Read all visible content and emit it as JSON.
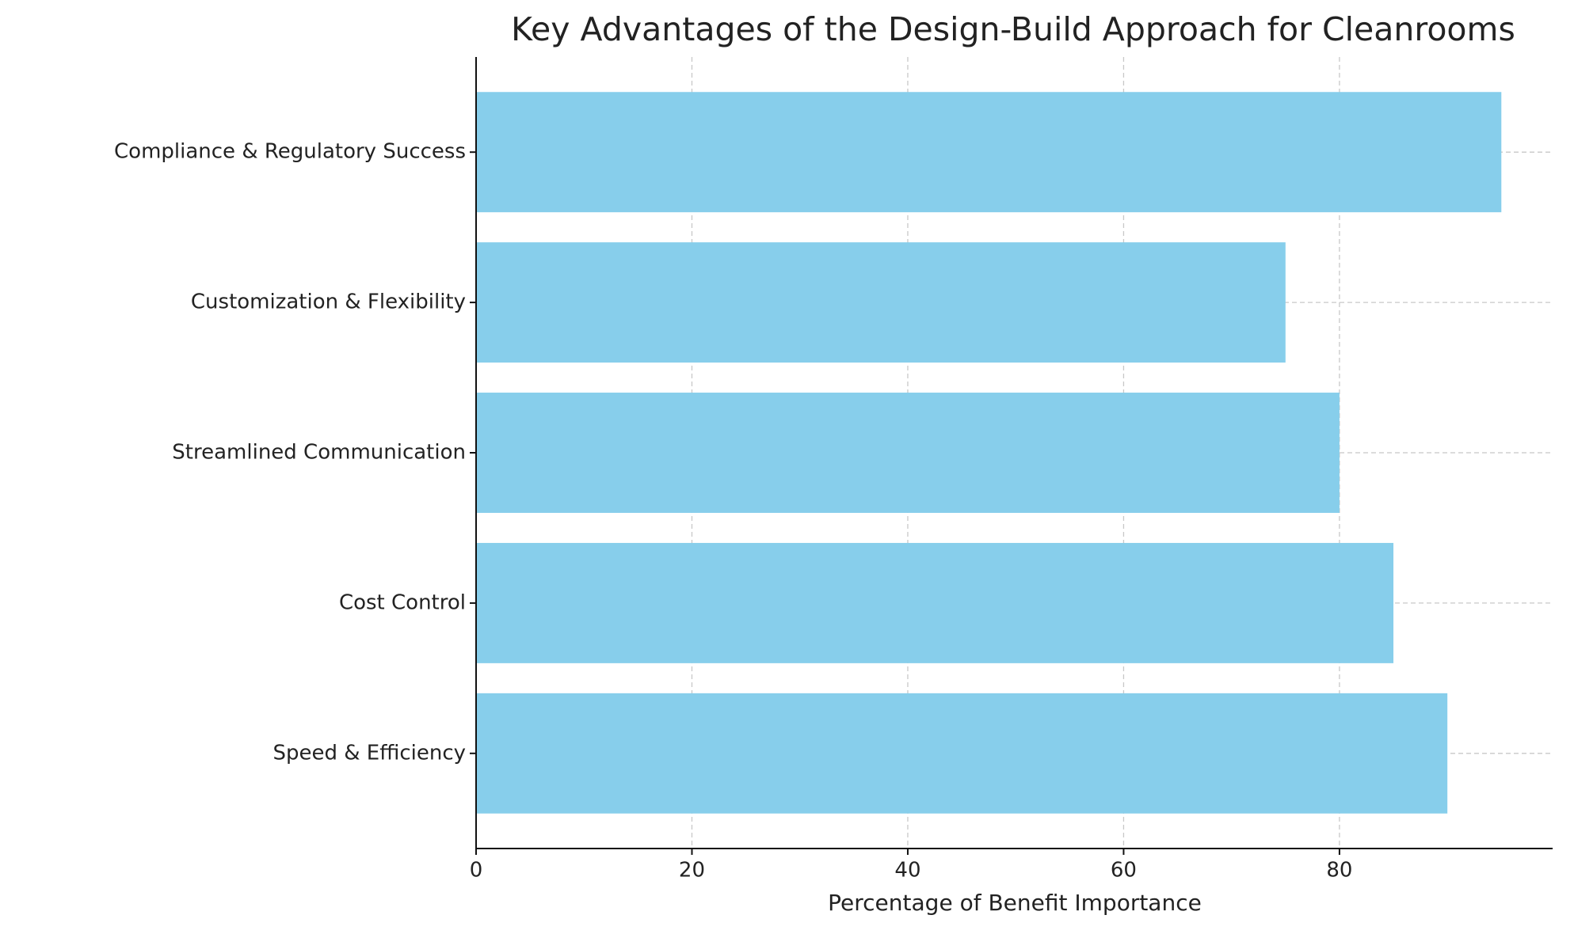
{
  "chart_data": {
    "type": "barh",
    "title": "Key Advantages of the Design-Build Approach for Cleanrooms",
    "xlabel": "Percentage of Benefit Importance",
    "categories": [
      "Speed & Efficiency",
      "Cost Control",
      "Streamlined Communication",
      "Customization & Flexibility",
      "Compliance & Regulatory Success"
    ],
    "values": [
      90,
      85,
      80,
      75,
      95
    ],
    "color": "#87ceeb",
    "xlim": [
      0,
      99.75
    ],
    "xticks": [
      0,
      20,
      40,
      60,
      80
    ],
    "grid": true
  }
}
